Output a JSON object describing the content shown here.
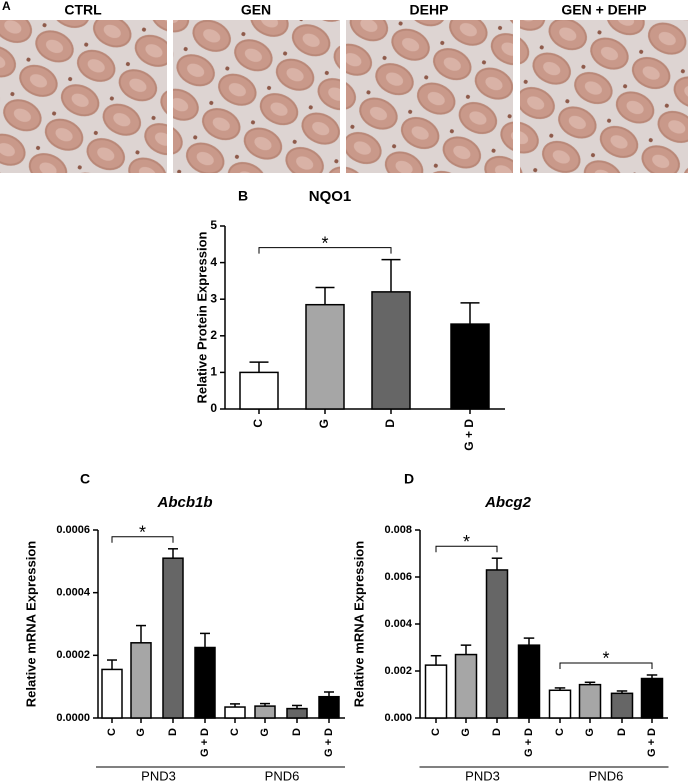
{
  "images": {
    "label": "A",
    "titles": [
      "CTRL",
      "GEN",
      "DEHP",
      "GEN + DEHP"
    ]
  },
  "chart_data": [
    {
      "type": "bar",
      "panel_label": "B",
      "title": "NQO1",
      "y_label": "Relative Protein Expression",
      "categories": [
        "C",
        "G",
        "D",
        "G + D"
      ],
      "values": [
        1.0,
        2.85,
        3.2,
        2.32
      ],
      "errors": [
        0.28,
        0.47,
        0.88,
        0.58
      ],
      "colors": [
        "#ffffff",
        "#a6a6a6",
        "#666666",
        "#000000"
      ],
      "ylim": [
        0,
        5
      ],
      "yticks": [
        0,
        1,
        2,
        3,
        4,
        5
      ],
      "annotations": [
        {
          "text": "*",
          "from": 0,
          "to": 2
        }
      ]
    },
    {
      "type": "bar",
      "panel_label": "C",
      "title": "Abcb1b",
      "y_label": "Relative mRNA Expression",
      "groups": [
        {
          "name": "PND3",
          "categories": [
            "C",
            "G",
            "D",
            "G + D"
          ],
          "values": [
            0.000155,
            0.00024,
            0.00051,
            0.000225
          ],
          "errors": [
            3e-05,
            5.5e-05,
            3e-05,
            4.5e-05
          ]
        },
        {
          "name": "PND6",
          "categories": [
            "C",
            "G",
            "D",
            "G + D"
          ],
          "values": [
            3.5e-05,
            3.8e-05,
            3e-05,
            6.8e-05
          ],
          "errors": [
            1e-05,
            8e-06,
            1e-05,
            1.5e-05
          ]
        }
      ],
      "colors": [
        "#ffffff",
        "#a6a6a6",
        "#666666",
        "#000000"
      ],
      "ylim": [
        0,
        0.0006
      ],
      "yticks": [
        {
          "value": 0,
          "label": "0.0000"
        },
        0.0002,
        0.0004,
        0.0006
      ],
      "annotations": [
        {
          "text": "*",
          "group": 0,
          "from": 0,
          "to": 2
        }
      ]
    },
    {
      "type": "bar",
      "panel_label": "D",
      "title": "Abcg2",
      "y_label": "Relative mRNA Expression",
      "groups": [
        {
          "name": "PND3",
          "categories": [
            "C",
            "G",
            "D",
            "G + D"
          ],
          "values": [
            0.00225,
            0.0027,
            0.0063,
            0.0031
          ],
          "errors": [
            0.0004,
            0.0004,
            0.0005,
            0.0003
          ]
        },
        {
          "name": "PND6",
          "categories": [
            "C",
            "G",
            "D",
            "G + D"
          ],
          "values": [
            0.00118,
            0.00142,
            0.00105,
            0.00168
          ],
          "errors": [
            0.0001,
            0.0001,
            0.0001,
            0.00015
          ]
        }
      ],
      "colors": [
        "#ffffff",
        "#a6a6a6",
        "#666666",
        "#000000"
      ],
      "ylim": [
        0,
        0.008
      ],
      "yticks": [
        {
          "value": 0,
          "label": "0.000"
        },
        0.002,
        0.004,
        0.006,
        0.008
      ],
      "annotations": [
        {
          "text": "*",
          "group": 0,
          "from": 0,
          "to": 2
        },
        {
          "text": "*",
          "group": 1,
          "from": 0,
          "to": 3
        }
      ]
    }
  ]
}
